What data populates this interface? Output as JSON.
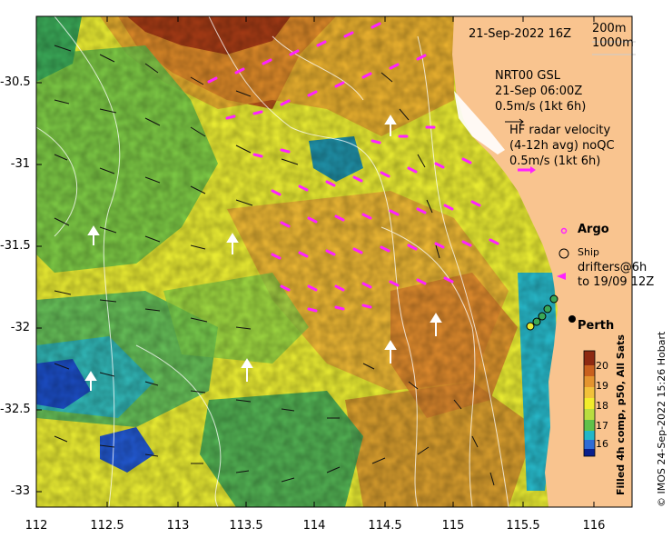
{
  "header": {
    "timestamp": "21-Sep-2022 16Z"
  },
  "depth_contours": {
    "label_1": "200m",
    "label_2": "1000m"
  },
  "model_legend": {
    "model": "NRT00 GSL",
    "time": "21-Sep 06:00Z",
    "scale": "0.5m/s (1kt 6h)"
  },
  "radar_legend": {
    "line1": "HF radar velocity",
    "line2": "(4-12h avg) noQC",
    "scale": "0.5m/s (1kt 6h)"
  },
  "markers": {
    "argo": "Argo",
    "ship": "Ship",
    "drifters_1": "drifters@6h",
    "drifters_2": "to 19/09 12Z"
  },
  "places": {
    "city": "Perth"
  },
  "axes": {
    "lat_ticks": [
      "-30.5",
      "-31",
      "-31.5",
      "-32",
      "-32.5",
      "-33"
    ],
    "lon_ticks": [
      "112",
      "112.5",
      "113",
      "113.5",
      "114",
      "114.5",
      "115",
      "115.5",
      "116"
    ]
  },
  "colorbar": {
    "ticks": [
      "20",
      "19",
      "18",
      "17",
      "16"
    ],
    "title": "Filled 4h comp, p50, All Sats",
    "colors": [
      "#0a1f8c",
      "#2f6cd6",
      "#22b6c8",
      "#1f9f55",
      "#5fc14a",
      "#b9dd3f",
      "#f2ec2c",
      "#f2c13a",
      "#e4942f",
      "#c9601e",
      "#8e2a12"
    ]
  },
  "credit": "© IMOS 24-Sep-2022 15:26 Hobart",
  "colors": {
    "land": "#f9c48f",
    "current_arrow": "#ff22ff",
    "radar_arrow": "#ffffff"
  }
}
